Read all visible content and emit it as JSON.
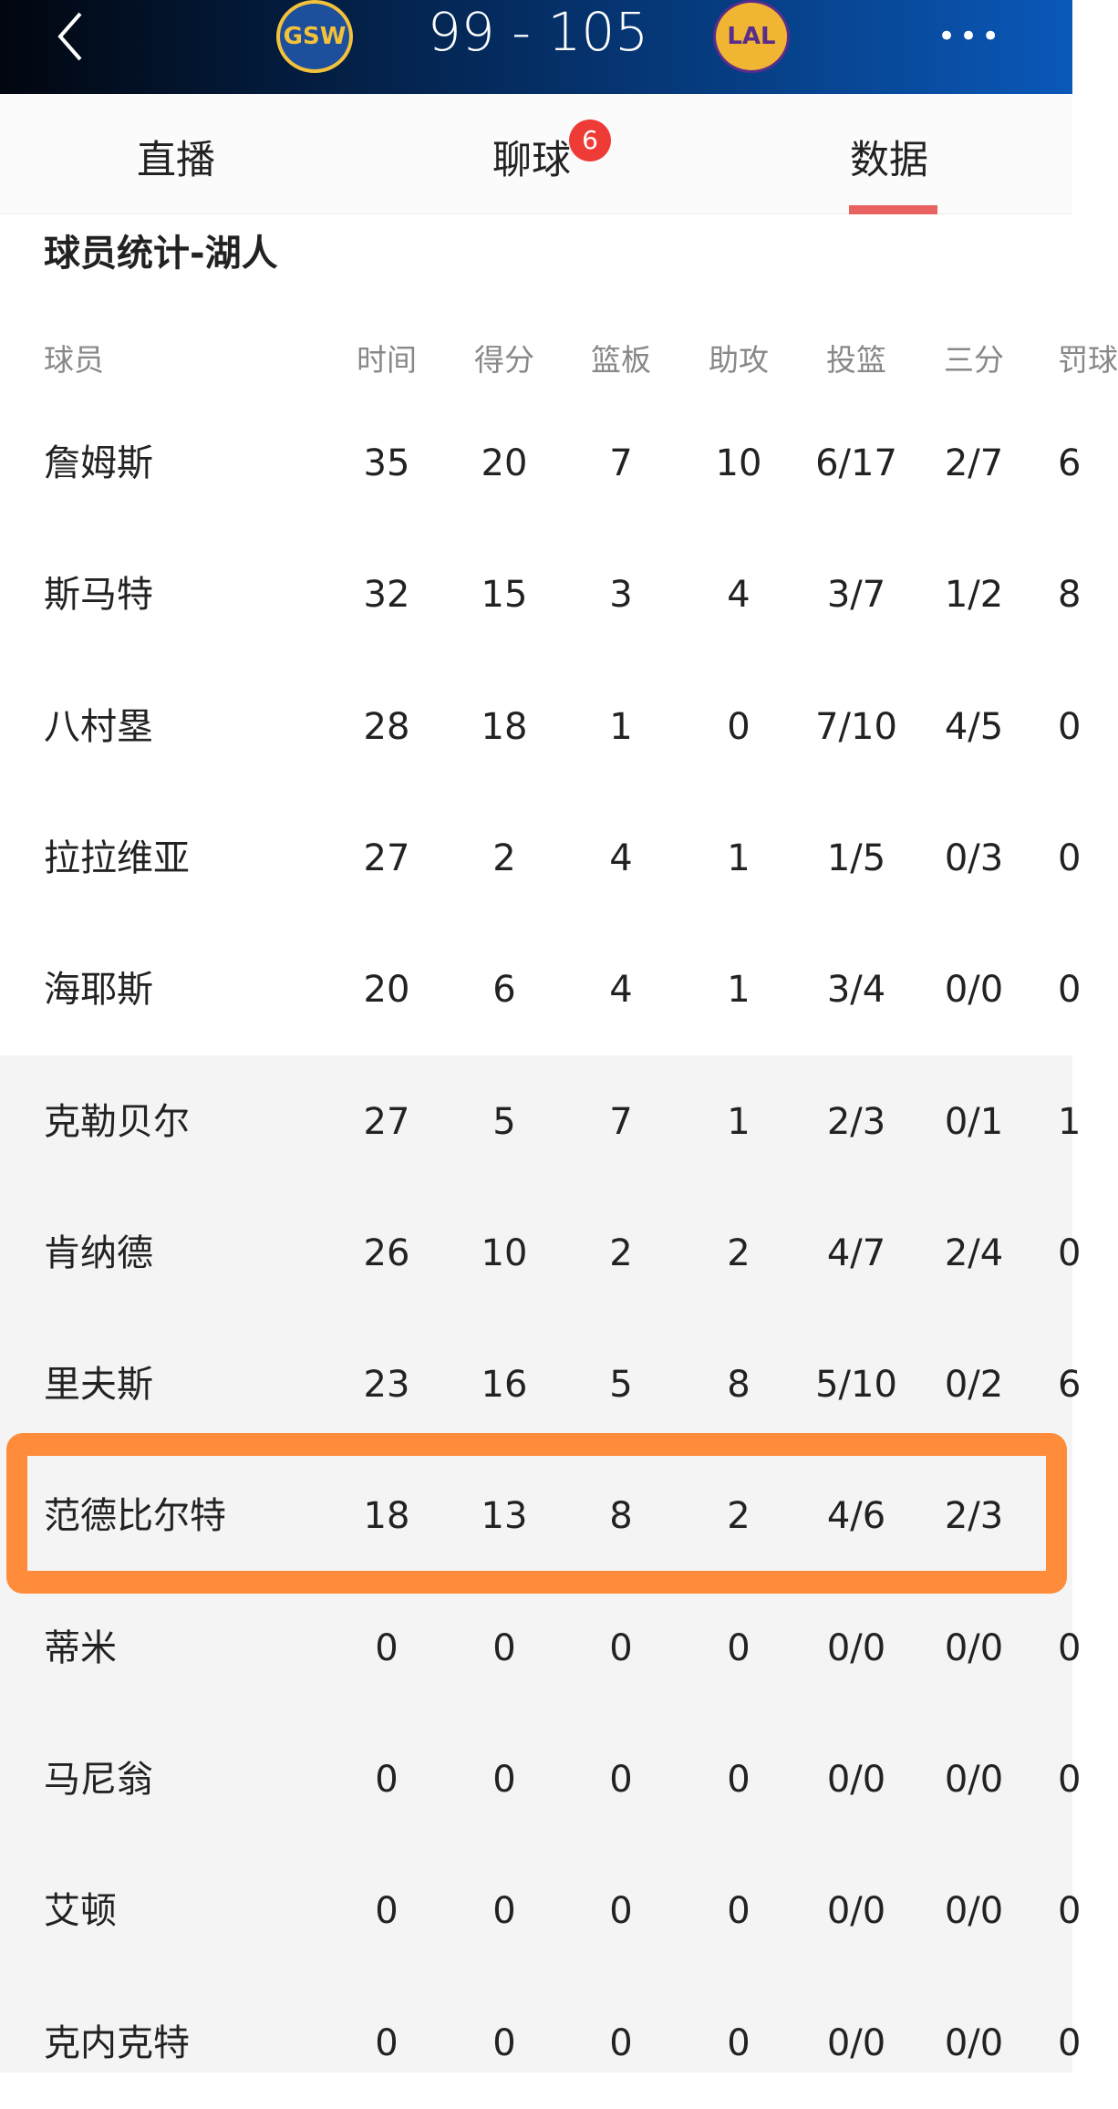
{
  "header": {
    "home_team": "GSW",
    "away_team": "LAL",
    "score": "99 - 105",
    "home_score": "99",
    "away_score": "105"
  },
  "tabs": [
    {
      "label": "直播"
    },
    {
      "label": "聊球",
      "badge": "6"
    },
    {
      "label": "数据",
      "active": true
    }
  ],
  "section_title": "球员统计-湖人",
  "columns": [
    "球员",
    "时间",
    "得分",
    "篮板",
    "助攻",
    "投篮",
    "三分",
    "罚球"
  ],
  "rows": [
    [
      "詹姆斯",
      "35",
      "20",
      "7",
      "10",
      "6/17",
      "2/7",
      "6"
    ],
    [
      "斯马特",
      "32",
      "15",
      "3",
      "4",
      "3/7",
      "1/2",
      "8"
    ],
    [
      "八村塁",
      "28",
      "18",
      "1",
      "0",
      "7/10",
      "4/5",
      "0"
    ],
    [
      "拉拉维亚",
      "27",
      "2",
      "4",
      "1",
      "1/5",
      "0/3",
      "0"
    ],
    [
      "海耶斯",
      "20",
      "6",
      "4",
      "1",
      "3/4",
      "0/0",
      "0"
    ],
    [
      "克勒贝尔",
      "27",
      "5",
      "7",
      "1",
      "2/3",
      "0/1",
      "1"
    ],
    [
      "肯纳德",
      "26",
      "10",
      "2",
      "2",
      "4/7",
      "2/4",
      "0"
    ],
    [
      "里夫斯",
      "23",
      "16",
      "5",
      "8",
      "5/10",
      "0/2",
      "6"
    ],
    [
      "范德比尔特",
      "18",
      "13",
      "8",
      "2",
      "4/6",
      "2/3",
      ""
    ],
    [
      "蒂米",
      "0",
      "0",
      "0",
      "0",
      "0/0",
      "0/0",
      "0"
    ],
    [
      "马尼翁",
      "0",
      "0",
      "0",
      "0",
      "0/0",
      "0/0",
      "0"
    ],
    [
      "艾顿",
      "0",
      "0",
      "0",
      "0",
      "0/0",
      "0/0",
      "0"
    ],
    [
      "克内克特",
      "0",
      "0",
      "0",
      "0",
      "0/0",
      "0/0",
      "0"
    ]
  ],
  "highlighted_row": "范德比尔特",
  "colors": {
    "highlight": "#fe8c3a",
    "accent": "#e8625f",
    "badge": "#ee3b36"
  }
}
